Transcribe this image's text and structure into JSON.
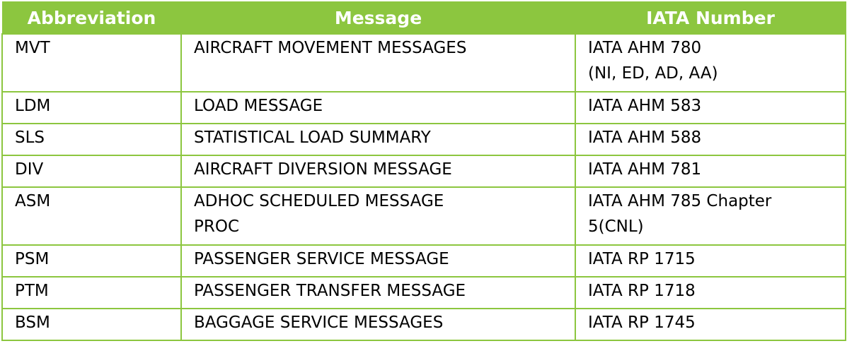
{
  "table": {
    "headers": [
      "Abbreviation",
      "Message",
      "IATA Number"
    ],
    "rows": [
      {
        "abbr": "MVT",
        "message": "AIRCRAFT MOVEMENT MESSAGES",
        "iata_lines": [
          "IATA AHM 780",
          "(NI, ED, AD, AA)"
        ]
      },
      {
        "abbr": "LDM",
        "message": "LOAD MESSAGE",
        "iata_lines": [
          "IATA AHM 583"
        ]
      },
      {
        "abbr": "SLS",
        "message": "STATISTICAL LOAD SUMMARY",
        "iata_lines": [
          "IATA AHM 588"
        ]
      },
      {
        "abbr": "DIV",
        "message": "AIRCRAFT DIVERSION MESSAGE",
        "iata_lines": [
          "IATA AHM 781"
        ]
      },
      {
        "abbr": "ASM",
        "message_lines": [
          "ADHOC SCHEDULED MESSAGE",
          "PROC"
        ],
        "iata_lines": [
          "IATA AHM 785 Chapter",
          "5(CNL)"
        ]
      },
      {
        "abbr": "PSM",
        "message": "PASSENGER SERVICE MESSAGE",
        "iata_lines": [
          "IATA RP 1715"
        ]
      },
      {
        "abbr": "PTM",
        "message": "PASSENGER TRANSFER MESSAGE",
        "iata_lines": [
          "IATA RP 1718"
        ]
      },
      {
        "abbr": "BSM",
        "message": "BAGGAGE SERVICE MESSAGES",
        "iata_lines": [
          "IATA RP 1745"
        ]
      }
    ]
  },
  "colors": {
    "header_bg": "#8cc63f",
    "border": "#8cc63f",
    "header_text": "#ffffff"
  }
}
